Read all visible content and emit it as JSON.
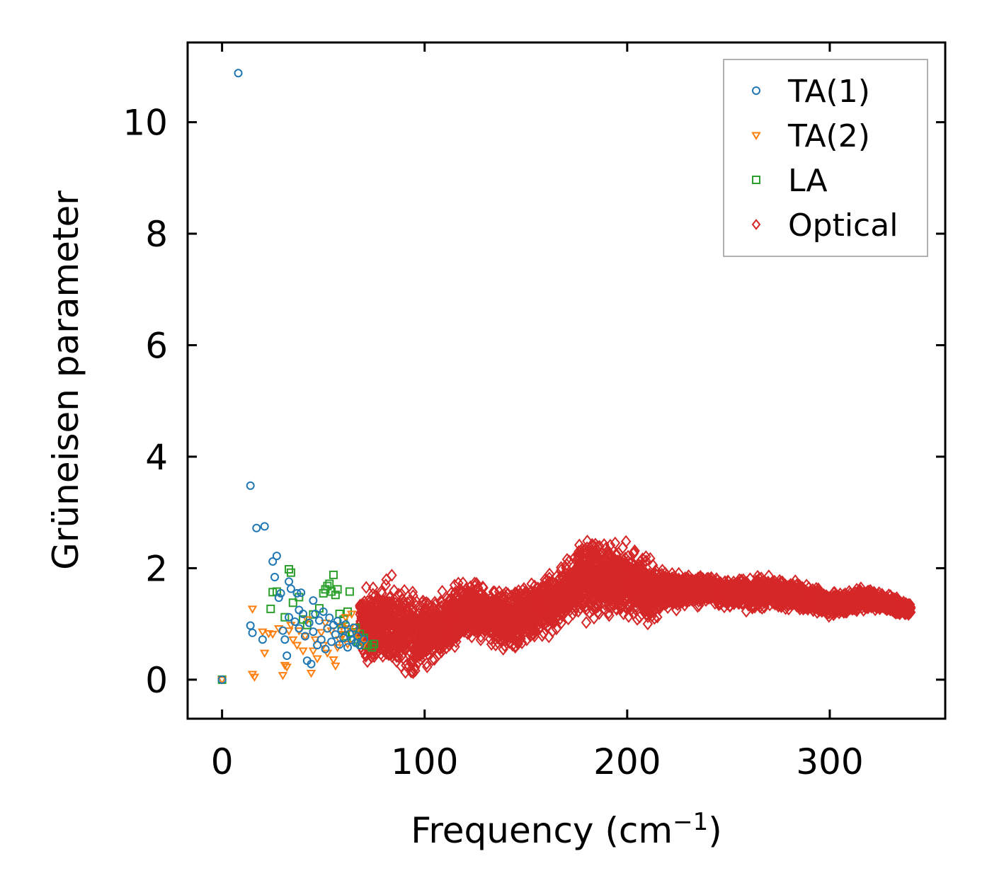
{
  "chart_data": {
    "type": "scatter",
    "title": "",
    "xlabel": "Frequency (cm",
    "xlabel_sup": "−1",
    "xlabel_close": ")",
    "ylabel": "Grüneisen parameter",
    "xlim": [
      -17,
      357
    ],
    "ylim": [
      -0.7,
      11.43
    ],
    "xticks": [
      0,
      100,
      200,
      300
    ],
    "xtick_labels": [
      "0",
      "100",
      "200",
      "300"
    ],
    "yticks": [
      0,
      2,
      4,
      6,
      8,
      10
    ],
    "ytick_labels": [
      "0",
      "2",
      "4",
      "6",
      "8",
      "10"
    ],
    "grid": false,
    "legend_position": "top-right",
    "series": [
      {
        "name": "TA(1)",
        "marker": "circle",
        "color": "#1f77b4",
        "points": [
          [
            0,
            0
          ],
          [
            8,
            10.88
          ],
          [
            14,
            3.48
          ],
          [
            17,
            2.72
          ],
          [
            21,
            2.75
          ],
          [
            14,
            0.97
          ],
          [
            15,
            0.84
          ],
          [
            20,
            0.72
          ],
          [
            25,
            2.12
          ],
          [
            27,
            2.22
          ],
          [
            26,
            1.84
          ],
          [
            28,
            1.47
          ],
          [
            29,
            1.55
          ],
          [
            30,
            0.88
          ],
          [
            31,
            0.72
          ],
          [
            32,
            0.43
          ],
          [
            33,
            1.12
          ],
          [
            33,
            1.76
          ],
          [
            34,
            1.63
          ],
          [
            36,
            1.04
          ],
          [
            37,
            1.55
          ],
          [
            38,
            1.25
          ],
          [
            38,
            0.92
          ],
          [
            39,
            1.56
          ],
          [
            40,
            1.18
          ],
          [
            41,
            0.78
          ],
          [
            42,
            0.34
          ],
          [
            43,
            1.02
          ],
          [
            44,
            0.28
          ],
          [
            45,
            1.42
          ],
          [
            45,
            0.86
          ],
          [
            46,
            1.18
          ],
          [
            47,
            0.62
          ],
          [
            48,
            1.06
          ],
          [
            49,
            0.72
          ],
          [
            50,
            1.22
          ],
          [
            51,
            0.55
          ],
          [
            52,
            0.92
          ],
          [
            53,
            1.11
          ],
          [
            54,
            0.68
          ],
          [
            55,
            0.98
          ],
          [
            56,
            0.81
          ],
          [
            57,
            1.05
          ],
          [
            58,
            0.63
          ],
          [
            59,
            0.88
          ],
          [
            60,
            0.75
          ],
          [
            61,
            0.99
          ],
          [
            62,
            0.58
          ],
          [
            63,
            0.82
          ],
          [
            64,
            0.71
          ],
          [
            65,
            0.93
          ],
          [
            66,
            0.66
          ],
          [
            67,
            0.78
          ],
          [
            68,
            0.62
          ],
          [
            70,
            0.72
          ]
        ]
      },
      {
        "name": "TA(2)",
        "marker": "triangle-down",
        "color": "#ff7f0e",
        "points": [
          [
            0,
            0
          ],
          [
            15,
            1.27
          ],
          [
            15,
            0.1
          ],
          [
            16,
            0.05
          ],
          [
            20,
            0.86
          ],
          [
            21,
            0.48
          ],
          [
            23,
            0.83
          ],
          [
            25,
            0.82
          ],
          [
            28,
            0.92
          ],
          [
            30,
            0.08
          ],
          [
            31,
            0.26
          ],
          [
            32,
            0.23
          ],
          [
            33,
            0.88
          ],
          [
            34,
            0.98
          ],
          [
            35,
            0.72
          ],
          [
            37,
            0.62
          ],
          [
            38,
            0.88
          ],
          [
            40,
            0.52
          ],
          [
            41,
            0.78
          ],
          [
            42,
            1.08
          ],
          [
            44,
            0.12
          ],
          [
            45,
            0.52
          ],
          [
            46,
            0.72
          ],
          [
            47,
            0.38
          ],
          [
            49,
            0.85
          ],
          [
            50,
            0.62
          ],
          [
            51,
            1.02
          ],
          [
            52,
            0.48
          ],
          [
            54,
            0.88
          ],
          [
            55,
            0.36
          ],
          [
            56,
            0.25
          ],
          [
            57,
            0.58
          ],
          [
            58,
            0.72
          ],
          [
            59,
            0.96
          ],
          [
            60,
            0.82
          ],
          [
            61,
            1.12
          ],
          [
            62,
            0.64
          ],
          [
            63,
            0.92
          ],
          [
            64,
            1.18
          ],
          [
            66,
            0.85
          ],
          [
            68,
            0.72
          ],
          [
            70,
            0.64
          ]
        ]
      },
      {
        "name": "LA",
        "marker": "square",
        "color": "#2ca02c",
        "points": [
          [
            0,
            0
          ],
          [
            24,
            1.27
          ],
          [
            25,
            1.57
          ],
          [
            27,
            1.58
          ],
          [
            31,
            1.12
          ],
          [
            33,
            1.98
          ],
          [
            34,
            1.92
          ],
          [
            35,
            1.38
          ],
          [
            38,
            1.48
          ],
          [
            40,
            1.08
          ],
          [
            42,
            0.98
          ],
          [
            45,
            1.17
          ],
          [
            48,
            1.28
          ],
          [
            50,
            1.55
          ],
          [
            51,
            1.62
          ],
          [
            52,
            1.68
          ],
          [
            53,
            1.72
          ],
          [
            54,
            1.58
          ],
          [
            55,
            1.88
          ],
          [
            56,
            1.52
          ],
          [
            57,
            1.62
          ],
          [
            58,
            1.18
          ],
          [
            59,
            0.92
          ],
          [
            60,
            1.08
          ],
          [
            61,
            0.78
          ],
          [
            62,
            1.22
          ],
          [
            63,
            1.58
          ],
          [
            64,
            0.85
          ],
          [
            65,
            0.72
          ],
          [
            66,
            0.93
          ],
          [
            67,
            0.68
          ],
          [
            68,
            0.82
          ],
          [
            69,
            0.62
          ],
          [
            70,
            0.75
          ],
          [
            72,
            0.62
          ],
          [
            74,
            0.58
          ],
          [
            75,
            0.64
          ]
        ]
      },
      {
        "name": "Optical",
        "marker": "diamond",
        "color": "#d62728",
        "envelope": [
          [
            68,
            0.3,
            1.7
          ],
          [
            85,
            -0.15,
            2.0
          ],
          [
            95,
            -0.1,
            1.7
          ],
          [
            110,
            0.3,
            1.6
          ],
          [
            120,
            0.5,
            2.0
          ],
          [
            130,
            0.6,
            1.8
          ],
          [
            140,
            0.3,
            1.7
          ],
          [
            150,
            0.5,
            1.9
          ],
          [
            165,
            0.8,
            2.0
          ],
          [
            175,
            1.0,
            2.6
          ],
          [
            182,
            0.9,
            2.8
          ],
          [
            190,
            1.0,
            2.6
          ],
          [
            200,
            1.0,
            2.5
          ],
          [
            210,
            0.9,
            2.3
          ],
          [
            220,
            1.2,
            2.0
          ],
          [
            240,
            1.3,
            1.9
          ],
          [
            260,
            1.2,
            1.9
          ],
          [
            280,
            1.2,
            1.9
          ],
          [
            300,
            1.1,
            1.6
          ],
          [
            320,
            1.2,
            1.7
          ],
          [
            340,
            1.1,
            1.4
          ]
        ]
      }
    ]
  },
  "legend": {
    "items": [
      {
        "label": "TA(1)"
      },
      {
        "label": "TA(2)"
      },
      {
        "label": "LA"
      },
      {
        "label": "Optical"
      }
    ]
  }
}
